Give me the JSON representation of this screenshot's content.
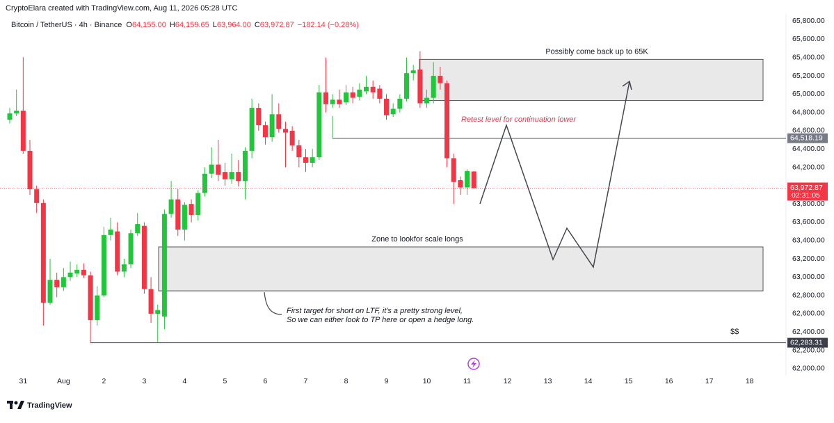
{
  "header": {
    "credit": "CryptoElara created with TradingView.com, Aug 11, 2026 05:28 UTC",
    "symbol": "Bitcoin / TetherUS · 4h · Binance",
    "ohlc": [
      {
        "key": "O",
        "value": "64,155.00"
      },
      {
        "key": "H",
        "value": "64,159.65"
      },
      {
        "key": "L",
        "value": "63,964.00"
      },
      {
        "key": "C",
        "value": "63,972.87"
      }
    ],
    "change": "−182.14 (−0.28%)"
  },
  "brand": "TradingView",
  "annotations": {
    "retest": "Retest level for continuation lower",
    "note": [
      "First target for short on LTF, it's a pretty strong level,",
      "So we can either look to TP here or open a hedge long."
    ],
    "money": "$$"
  },
  "chart_data": {
    "type": "candlestick",
    "up_color": "#22c63a",
    "down_color": "#f23645",
    "grid": false,
    "categories": [
      null,
      null,
      "31",
      null,
      null,
      null,
      null,
      null,
      "Aug",
      null,
      null,
      null,
      null,
      null,
      "2",
      null,
      null,
      null,
      null,
      null,
      "3",
      null,
      null,
      null,
      null,
      null,
      "4",
      null,
      null,
      null,
      null,
      null,
      "5",
      null,
      null,
      null,
      null,
      null,
      "6",
      null,
      null,
      null,
      null,
      null,
      "7",
      null,
      null,
      null,
      null,
      null,
      "8",
      null,
      null,
      null,
      null,
      null,
      "9",
      null,
      null,
      null,
      null,
      null,
      "10",
      null,
      null,
      null,
      null,
      null,
      "11",
      null,
      null,
      null,
      null,
      null,
      "12",
      null,
      null,
      null,
      null,
      null,
      "13",
      null,
      null,
      null,
      null,
      null,
      "14",
      null,
      null,
      null,
      null,
      null,
      "15",
      null,
      null,
      null,
      null,
      null,
      "16",
      null,
      null,
      null,
      null,
      null,
      "17",
      null,
      null,
      null,
      null,
      null,
      "18",
      null,
      null,
      null
    ],
    "open": [
      64720,
      64790,
      64820,
      64380,
      63960,
      63810,
      62720,
      62970,
      62890,
      63000,
      63040,
      63080,
      63020,
      62530,
      62800,
      63460,
      63500,
      63060,
      63140,
      63480,
      63560,
      62870,
      62600,
      62570,
      63690,
      63850,
      63520,
      63800,
      63680,
      63920,
      64130,
      64230,
      64150,
      64070,
      64150,
      64050,
      64380,
      64850,
      64660,
      64530,
      64780,
      64620,
      64600,
      64440,
      64310,
      64250,
      64310,
      65020,
      64890,
      64940,
      64910,
      65020,
      64970,
      65030,
      65080,
      65060,
      64950,
      64780,
      64840,
      64950,
      65230,
      65270,
      64900,
      64960,
      65200,
      65120,
      64300,
      64060,
      63980,
      64155,
      null,
      null,
      null,
      null,
      null,
      null,
      null,
      null,
      null,
      null,
      null,
      null,
      null,
      null,
      null,
      null,
      null,
      null,
      null,
      null,
      null,
      null,
      null,
      null,
      null,
      null,
      null,
      null,
      null,
      null,
      null,
      null,
      null,
      null,
      null,
      null,
      null,
      null,
      null,
      null,
      null,
      null,
      null,
      null
    ],
    "high": [
      64850,
      65050,
      65405,
      64500,
      64000,
      63850,
      63200,
      63050,
      63100,
      63170,
      63140,
      63150,
      63060,
      62900,
      63550,
      63650,
      63600,
      63200,
      63520,
      63700,
      63600,
      63000,
      62700,
      63740,
      64050,
      63960,
      63820,
      63850,
      63950,
      64200,
      64420,
      64500,
      64250,
      64350,
      64280,
      64420,
      64950,
      64900,
      64700,
      65000,
      64900,
      64700,
      64650,
      64500,
      64400,
      64400,
      65100,
      65400,
      65000,
      65050,
      65100,
      65080,
      65120,
      65200,
      65150,
      65100,
      65000,
      64900,
      65000,
      65400,
      65320,
      65470,
      65050,
      65350,
      65300,
      65150,
      64350,
      64100,
      64180,
      64159.65,
      null,
      null,
      null,
      null,
      null,
      null,
      null,
      null,
      null,
      null,
      null,
      null,
      null,
      null,
      null,
      null,
      null,
      null,
      null,
      null,
      null,
      null,
      null,
      null,
      null,
      null,
      null,
      null,
      null,
      null,
      null,
      null,
      null,
      null,
      null,
      null,
      null,
      null,
      null,
      null,
      null,
      null,
      null,
      null
    ],
    "low": [
      64680,
      64760,
      64350,
      63900,
      63700,
      62470,
      62700,
      62780,
      62850,
      62960,
      63000,
      62990,
      62280,
      62470,
      62780,
      63400,
      63020,
      63000,
      63100,
      63450,
      62820,
      62500,
      62290,
      62430,
      63650,
      63450,
      63400,
      63600,
      63620,
      63880,
      64080,
      64050,
      64000,
      64020,
      63990,
      63850,
      64300,
      64600,
      64450,
      64480,
      64580,
      64200,
      64380,
      64200,
      64150,
      64200,
      64280,
      64800,
      64850,
      64850,
      64880,
      64900,
      64930,
      65000,
      64950,
      64900,
      64720,
      64750,
      64800,
      64920,
      65150,
      64850,
      64850,
      64900,
      65050,
      64200,
      63800,
      63900,
      63900,
      63964,
      null,
      null,
      null,
      null,
      null,
      null,
      null,
      null,
      null,
      null,
      null,
      null,
      null,
      null,
      null,
      null,
      null,
      null,
      null,
      null,
      null,
      null,
      null,
      null,
      null,
      null,
      null,
      null,
      null,
      null,
      null,
      null,
      null,
      null,
      null,
      null,
      null,
      null,
      null,
      null,
      null,
      null,
      null,
      null
    ],
    "close": [
      64790,
      64820,
      64380,
      63960,
      63810,
      62720,
      62970,
      62890,
      63000,
      63050,
      63080,
      63020,
      62530,
      62800,
      63460,
      63520,
      63060,
      63140,
      63480,
      63580,
      62870,
      62600,
      62640,
      63690,
      63850,
      63520,
      63790,
      63680,
      63920,
      64130,
      64230,
      64120,
      64070,
      64150,
      64050,
      64380,
      64850,
      64660,
      64530,
      64780,
      64620,
      64580,
      64440,
      64310,
      64250,
      64310,
      65020,
      64890,
      64940,
      64890,
      65020,
      64960,
      65050,
      65080,
      65020,
      64950,
      64770,
      64840,
      64950,
      65230,
      65260,
      64900,
      64960,
      65200,
      65120,
      64300,
      64040,
      63980,
      64160,
      63972.87,
      null,
      null,
      null,
      null,
      null,
      null,
      null,
      null,
      null,
      null,
      null,
      null,
      null,
      null,
      null,
      null,
      null,
      null,
      null,
      null,
      null,
      null,
      null,
      null,
      null,
      null,
      null,
      null,
      null,
      null,
      null,
      null,
      null,
      null,
      null,
      null,
      null,
      null,
      null,
      null,
      null,
      null,
      null,
      null
    ],
    "ylim": [
      61900,
      65900
    ],
    "yticks": [
      {
        "value": 62000,
        "label": "62,000.00"
      },
      {
        "value": 62200,
        "label": "62,200.00"
      },
      {
        "value": 62400,
        "label": "62,400.00"
      },
      {
        "value": 62600,
        "label": "62,600.00"
      },
      {
        "value": 62800,
        "label": "62,800.00"
      },
      {
        "value": 63000,
        "label": "63,000.00"
      },
      {
        "value": 63200,
        "label": "63,200.00"
      },
      {
        "value": 63400,
        "label": "63,400.00"
      },
      {
        "value": 63600,
        "label": "63,600.00"
      },
      {
        "value": 63800,
        "label": "63,800.00"
      },
      {
        "value": 64200,
        "label": "64,200.00"
      },
      {
        "value": 64400,
        "label": "64,400.00"
      },
      {
        "value": 64600,
        "label": "64,600.00"
      },
      {
        "value": 64800,
        "label": "64,800.00"
      },
      {
        "value": 65000,
        "label": "65,000.00"
      },
      {
        "value": 65200,
        "label": "65,200.00"
      },
      {
        "value": 65400,
        "label": "65,400.00"
      },
      {
        "value": 65600,
        "label": "65,600.00"
      },
      {
        "value": 65800,
        "label": "65,800.00"
      }
    ],
    "levels": [
      {
        "value": 64518.19,
        "label": "64,518.19",
        "color": "#787b86"
      },
      {
        "value": 62283.31,
        "label": "62,283.31",
        "color": "#3c3f4a"
      }
    ],
    "last_price": {
      "value": 63972.87,
      "label": "63,972.87",
      "countdown": "02:31:05",
      "color": "#f23645"
    },
    "zones": [
      {
        "top": 65380,
        "bottom": 64930,
        "label": "Possibly come back up to 65K"
      },
      {
        "top": 63330,
        "bottom": 62850,
        "label": "Zone to lookfor scale longs"
      }
    ]
  }
}
